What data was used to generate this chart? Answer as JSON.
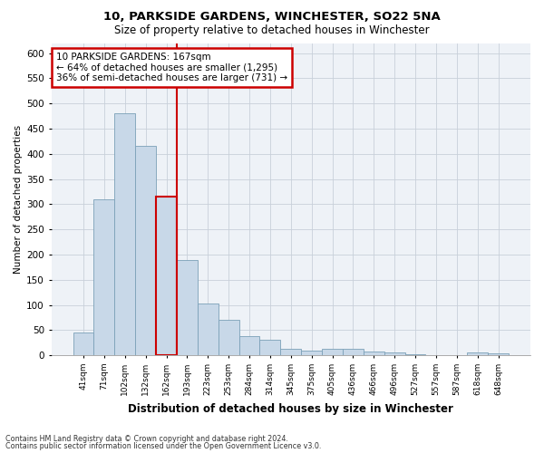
{
  "title": "10, PARKSIDE GARDENS, WINCHESTER, SO22 5NA",
  "subtitle": "Size of property relative to detached houses in Winchester",
  "xlabel": "Distribution of detached houses by size in Winchester",
  "ylabel": "Number of detached properties",
  "categories": [
    "41sqm",
    "71sqm",
    "102sqm",
    "132sqm",
    "162sqm",
    "193sqm",
    "223sqm",
    "253sqm",
    "284sqm",
    "314sqm",
    "345sqm",
    "375sqm",
    "405sqm",
    "436sqm",
    "466sqm",
    "496sqm",
    "527sqm",
    "557sqm",
    "587sqm",
    "618sqm",
    "648sqm"
  ],
  "values": [
    45,
    310,
    480,
    415,
    315,
    190,
    103,
    70,
    38,
    30,
    13,
    10,
    13,
    12,
    7,
    5,
    2,
    0,
    0,
    5,
    3
  ],
  "bar_color": "#c8d8e8",
  "bar_edge_color": "#7ba0b8",
  "highlight_index": 4,
  "highlight_color": "#cc0000",
  "ylim": [
    0,
    620
  ],
  "yticks": [
    0,
    50,
    100,
    150,
    200,
    250,
    300,
    350,
    400,
    450,
    500,
    550,
    600
  ],
  "annotation_line1": "10 PARKSIDE GARDENS: 167sqm",
  "annotation_line2": "← 64% of detached houses are smaller (1,295)",
  "annotation_line3": "36% of semi-detached houses are larger (731) →",
  "annotation_box_color": "#ffffff",
  "annotation_box_edge_color": "#cc0000",
  "footnote1": "Contains HM Land Registry data © Crown copyright and database right 2024.",
  "footnote2": "Contains public sector information licensed under the Open Government Licence v3.0.",
  "background_color": "#eef2f7",
  "plot_background_color": "#ffffff",
  "grid_color": "#c8d0da"
}
